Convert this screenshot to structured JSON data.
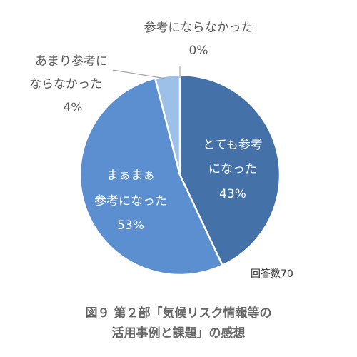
{
  "chart_data": {
    "type": "pie",
    "slices": [
      {
        "label_lines": [
          "とても参考",
          "になった"
        ],
        "percent_text": "43%",
        "value": 43,
        "color": "#4472a8"
      },
      {
        "label_lines": [
          "まぁまぁ",
          "参考になった"
        ],
        "percent_text": "53%",
        "value": 53,
        "color": "#5b8fd0"
      },
      {
        "label_lines": [
          "あまり参考に",
          "ならなかった"
        ],
        "percent_text": "4%",
        "value": 4,
        "color": "#9dc0e8"
      },
      {
        "label_lines": [
          "参考にならなかった"
        ],
        "percent_text": "0%",
        "value": 0,
        "color": "#c9dcf2"
      }
    ],
    "count_label": "回答数70",
    "start": "top (12 o'clock), clockwise"
  },
  "caption": {
    "line1": "図９ 第２部「気候リスク情報等の",
    "line2": "活用事例と課題」の感想"
  }
}
